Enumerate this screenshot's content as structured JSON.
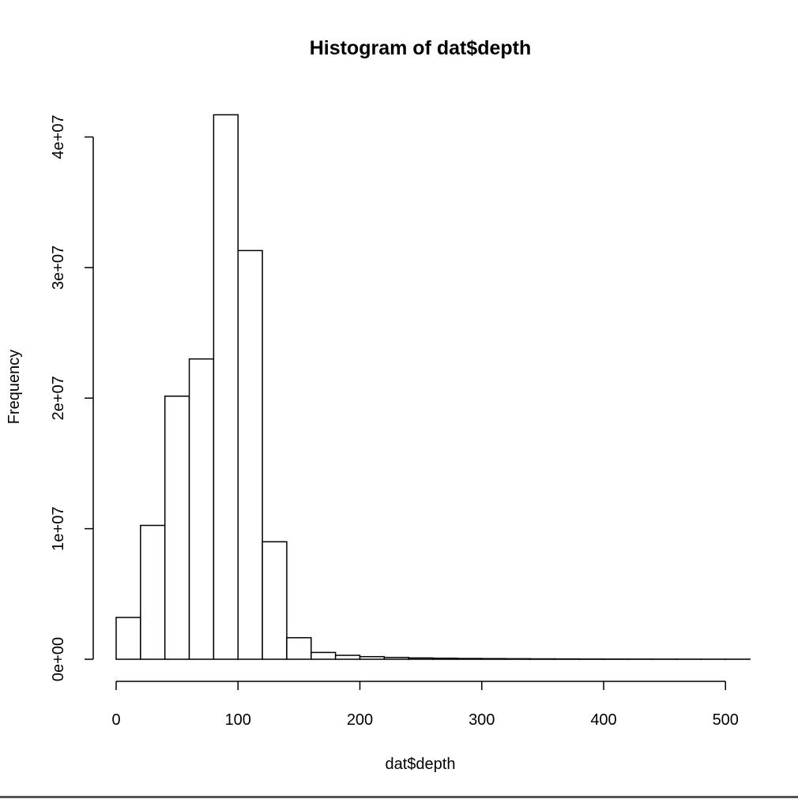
{
  "chart_data": {
    "type": "bar",
    "title": "Histogram of dat$depth",
    "xlabel": "dat$depth",
    "ylabel": "Frequency",
    "xlim": [
      0,
      520
    ],
    "ylim": [
      0,
      42000000
    ],
    "x_ticks": [
      0,
      100,
      200,
      300,
      400,
      500
    ],
    "x_tick_labels": [
      "0",
      "100",
      "200",
      "300",
      "400",
      "500"
    ],
    "y_ticks": [
      0,
      10000000,
      20000000,
      30000000,
      40000000
    ],
    "y_tick_labels": [
      "0e+00",
      "1e+07",
      "2e+07",
      "3e+07",
      "4e+07"
    ],
    "bin_width": 20,
    "bin_starts": [
      0,
      20,
      40,
      60,
      80,
      100,
      120,
      140,
      160,
      180,
      200,
      220,
      240,
      260,
      280,
      300,
      320,
      340,
      360,
      380,
      400,
      420,
      440,
      460,
      480,
      500
    ],
    "values": [
      3200000,
      10250000,
      20150000,
      23000000,
      41700000,
      31300000,
      9000000,
      1650000,
      520000,
      300000,
      200000,
      140000,
      100000,
      80000,
      60000,
      50000,
      40000,
      30000,
      25000,
      20000,
      15000,
      12000,
      10000,
      8000,
      6000,
      5000
    ],
    "grid": false
  }
}
